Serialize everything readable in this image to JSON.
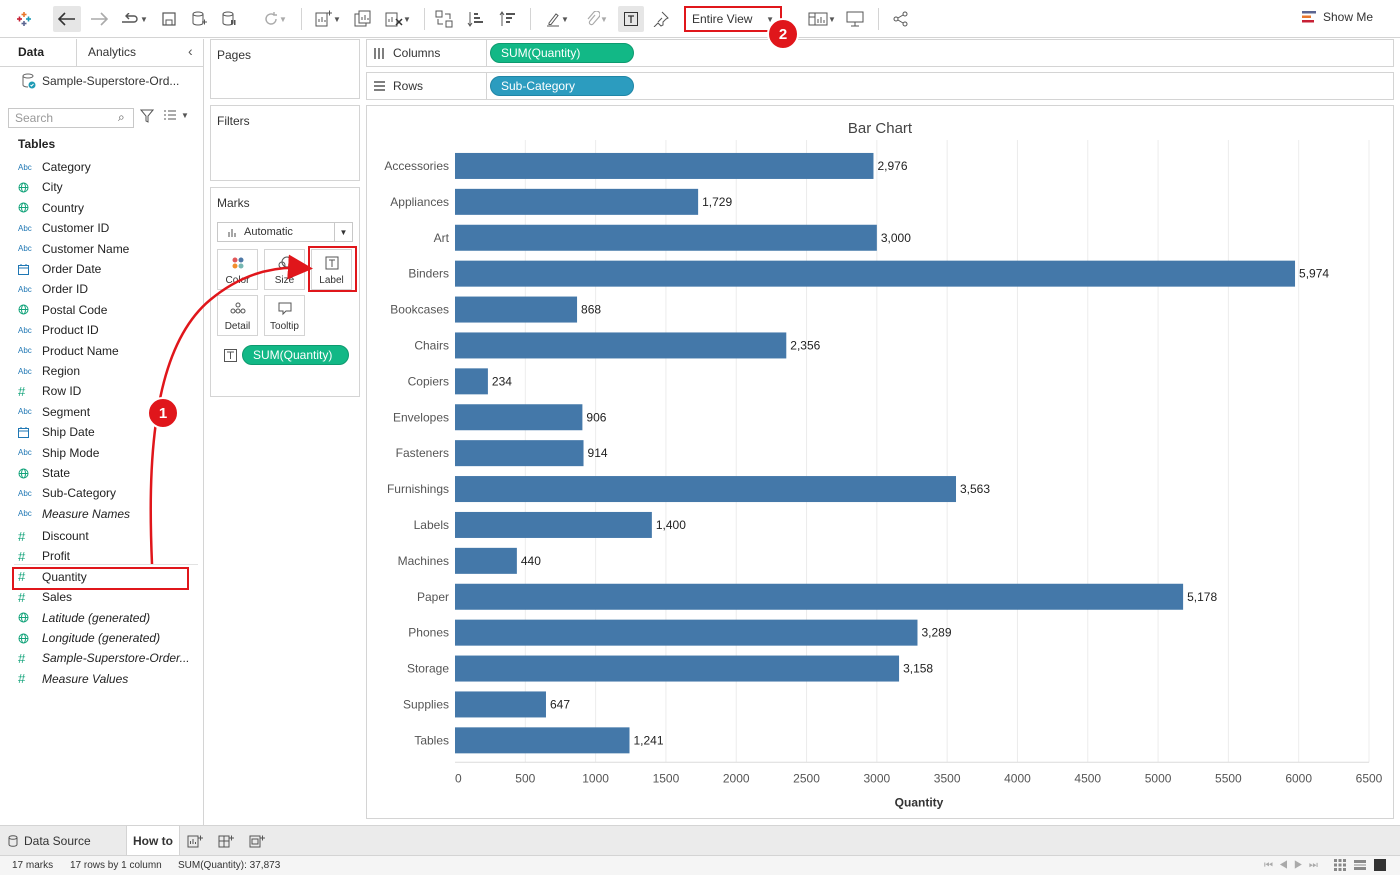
{
  "toolbar": {
    "view_select": "Entire View",
    "show_me": "Show Me",
    "colors": {
      "annotation": "#e0161b"
    }
  },
  "data_pane": {
    "tabs": [
      "Data",
      "Analytics"
    ],
    "datasource": "Sample-Superstore-Ord...",
    "search_placeholder": "Search",
    "tables_title": "Tables",
    "fields": [
      {
        "type": "Abc",
        "name": "Category",
        "icon": "abc-icon"
      },
      {
        "type": "geo",
        "name": "City",
        "icon": "globe-icon"
      },
      {
        "type": "geo",
        "name": "Country",
        "icon": "globe-icon"
      },
      {
        "type": "Abc",
        "name": "Customer ID",
        "icon": "abc-icon"
      },
      {
        "type": "Abc",
        "name": "Customer Name",
        "icon": "abc-icon"
      },
      {
        "type": "date",
        "name": "Order Date",
        "icon": "calendar-icon"
      },
      {
        "type": "Abc",
        "name": "Order ID",
        "icon": "abc-icon"
      },
      {
        "type": "geo",
        "name": "Postal Code",
        "icon": "globe-icon"
      },
      {
        "type": "Abc",
        "name": "Product ID",
        "icon": "abc-icon"
      },
      {
        "type": "Abc",
        "name": "Product Name",
        "icon": "abc-icon"
      },
      {
        "type": "Abc",
        "name": "Region",
        "icon": "abc-icon"
      },
      {
        "type": "measure",
        "name": "Row ID",
        "icon": "hash-icon"
      },
      {
        "type": "Abc",
        "name": "Segment",
        "icon": "abc-icon"
      },
      {
        "type": "date",
        "name": "Ship Date",
        "icon": "calendar-icon"
      },
      {
        "type": "Abc",
        "name": "Ship Mode",
        "icon": "abc-icon"
      },
      {
        "type": "geo",
        "name": "State",
        "icon": "globe-icon"
      },
      {
        "type": "Abc",
        "name": "Sub-Category",
        "icon": "abc-icon"
      },
      {
        "type": "Abc",
        "name": "Measure Names",
        "icon": "abc-icon",
        "italic": true
      }
    ],
    "measures": [
      {
        "type": "measure",
        "name": "Discount",
        "icon": "hash-icon"
      },
      {
        "type": "measure",
        "name": "Profit",
        "icon": "hash-icon"
      },
      {
        "type": "measure",
        "name": "Quantity",
        "icon": "hash-icon"
      },
      {
        "type": "measure",
        "name": "Sales",
        "icon": "hash-icon"
      },
      {
        "type": "geo",
        "name": "Latitude (generated)",
        "icon": "globe-icon",
        "italic": true
      },
      {
        "type": "geo",
        "name": "Longitude (generated)",
        "icon": "globe-icon",
        "italic": true
      },
      {
        "type": "measure",
        "name": "Sample-Superstore-Order...",
        "icon": "hash-icon",
        "italic": true
      },
      {
        "type": "measure",
        "name": "Measure Values",
        "icon": "hash-icon",
        "italic": true
      }
    ]
  },
  "cards": {
    "pages": "Pages",
    "filters": "Filters",
    "marks": "Marks",
    "mark_type": "Automatic",
    "mark_buttons": [
      "Color",
      "Size",
      "Label",
      "Detail",
      "Tooltip"
    ],
    "label_pill": "SUM(Quantity)"
  },
  "shelves": {
    "columns_label": "Columns",
    "columns_pill": "SUM(Quantity)",
    "rows_label": "Rows",
    "rows_pill": "Sub-Category"
  },
  "chart_data": {
    "type": "bar",
    "orientation": "horizontal",
    "title": "Bar Chart",
    "xlabel": "Quantity",
    "ylabel": "",
    "categories": [
      "Accessories",
      "Appliances",
      "Art",
      "Binders",
      "Bookcases",
      "Chairs",
      "Copiers",
      "Envelopes",
      "Fasteners",
      "Furnishings",
      "Labels",
      "Machines",
      "Paper",
      "Phones",
      "Storage",
      "Supplies",
      "Tables"
    ],
    "values": [
      2976,
      1729,
      3000,
      5974,
      868,
      2356,
      234,
      906,
      914,
      3563,
      1400,
      440,
      5178,
      3289,
      3158,
      647,
      1241
    ],
    "value_labels": [
      "2,976",
      "1,729",
      "3,000",
      "5,974",
      "868",
      "2,356",
      "234",
      "906",
      "914",
      "3,563",
      "1,400",
      "440",
      "5,178",
      "3,289",
      "3,158",
      "647",
      "1,241"
    ],
    "xlim": [
      0,
      6500
    ],
    "xticks": [
      0,
      500,
      1000,
      1500,
      2000,
      2500,
      3000,
      3500,
      4000,
      4500,
      5000,
      5500,
      6000,
      6500
    ],
    "grid": true,
    "bar_color": "#4478a9"
  },
  "sheet_tabs": {
    "data_source": "Data Source",
    "active_sheet": "How to"
  },
  "status": {
    "marks": "17 marks",
    "rows": "17 rows by 1 column",
    "sum": "SUM(Quantity): 37,873"
  },
  "annotations": [
    "1",
    "2"
  ]
}
